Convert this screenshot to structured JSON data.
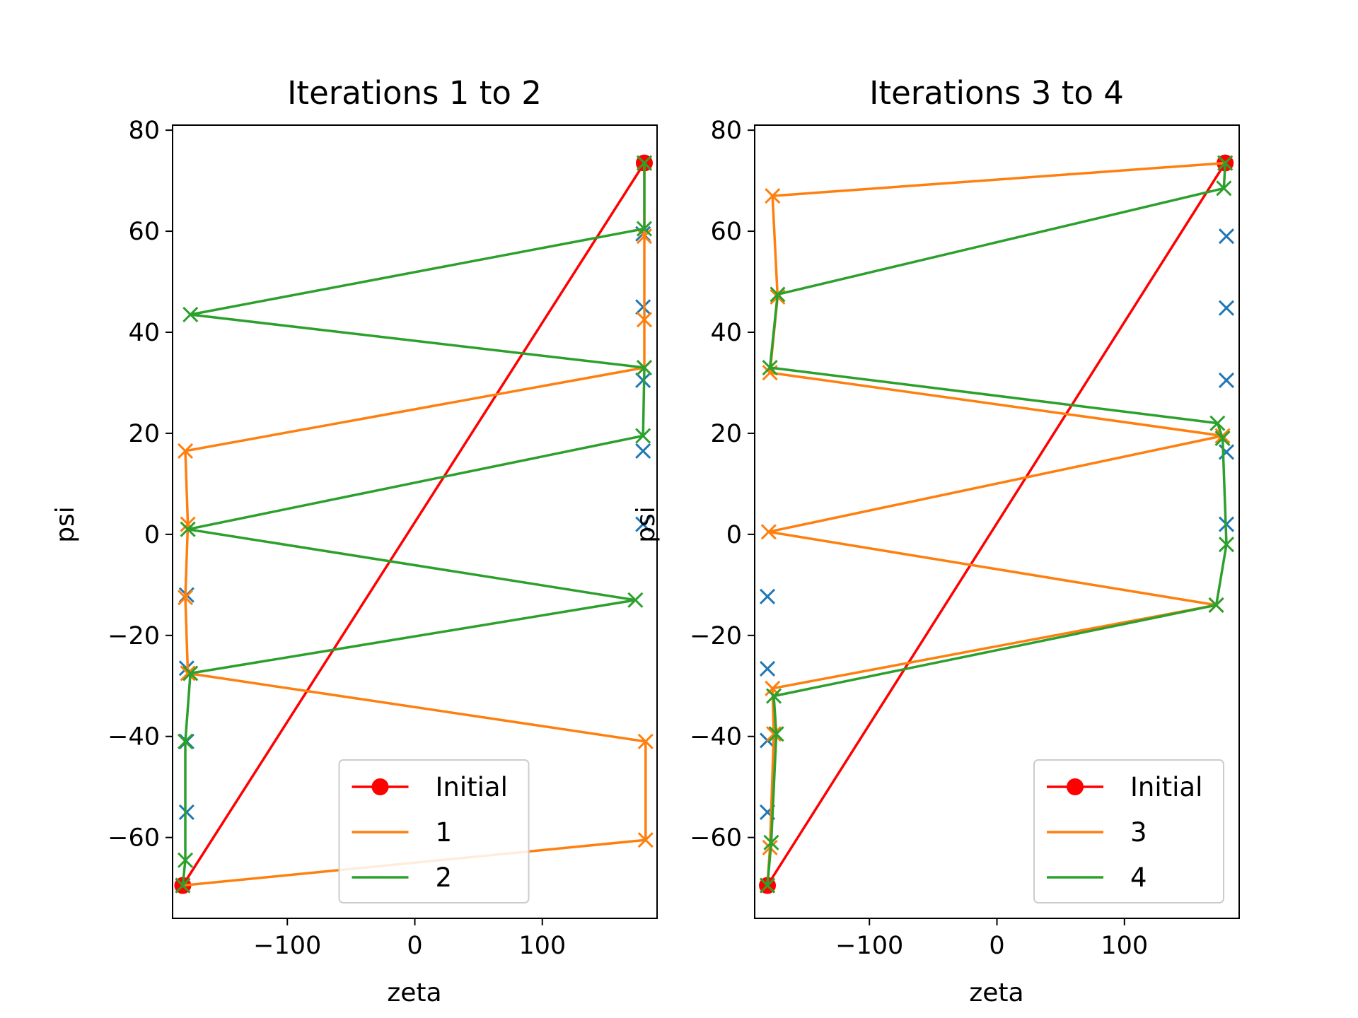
{
  "colors": {
    "initial": "#ff0000",
    "odd": "#ff7f0e",
    "even": "#2ca02c",
    "scatter": "#1f77b4"
  },
  "chart_data": [
    {
      "type": "line",
      "title": "Iterations 1 to 2",
      "xlabel": "zeta",
      "ylabel": "psi",
      "xlim": [
        -190,
        190
      ],
      "ylim": [
        -76,
        81
      ],
      "xticks": [
        -100,
        0,
        100
      ],
      "yticks": [
        -60,
        -40,
        -20,
        0,
        20,
        40,
        60,
        80
      ],
      "grid": false,
      "legend_position": "lower-center",
      "legend": [
        "Initial",
        "1",
        "2"
      ],
      "scatter_points": [
        {
          "x": 179,
          "y": 59.5
        },
        {
          "x": 179,
          "y": 45
        },
        {
          "x": 179,
          "y": 30.5
        },
        {
          "x": 179,
          "y": 16.5
        },
        {
          "x": 179,
          "y": 2
        },
        {
          "x": -179,
          "y": -12
        },
        {
          "x": -179,
          "y": -26.5
        },
        {
          "x": -179,
          "y": -41
        },
        {
          "x": -179,
          "y": -55
        }
      ],
      "series": [
        {
          "name": "Initial",
          "color_key": "initial",
          "marker": "o",
          "points": [
            {
              "x": -182,
              "y": -69.5
            },
            {
              "x": 180,
              "y": 73.5
            }
          ]
        },
        {
          "name": "1",
          "color_key": "odd",
          "marker": "x",
          "points": [
            {
              "x": -182,
              "y": -69.5
            },
            {
              "x": 181,
              "y": -60.5
            },
            {
              "x": 181,
              "y": -41
            },
            {
              "x": -178,
              "y": -27.5
            },
            {
              "x": -180,
              "y": -12.5
            },
            {
              "x": -178,
              "y": 2
            },
            {
              "x": -180,
              "y": 16.5
            },
            {
              "x": 180,
              "y": 33
            },
            {
              "x": 180,
              "y": 42.5
            },
            {
              "x": 180,
              "y": 59
            },
            {
              "x": 180,
              "y": 73.5
            }
          ]
        },
        {
          "name": "2",
          "color_key": "even",
          "marker": "x",
          "points": [
            {
              "x": 180,
              "y": 73.5
            },
            {
              "x": 180,
              "y": 60.5
            },
            {
              "x": -176,
              "y": 43.5
            },
            {
              "x": 180,
              "y": 33
            },
            {
              "x": 179,
              "y": 19.5
            },
            {
              "x": -178,
              "y": 1
            },
            {
              "x": 173,
              "y": -13
            },
            {
              "x": -176,
              "y": -27.5
            },
            {
              "x": -180,
              "y": -41
            },
            {
              "x": -180,
              "y": -64.5
            },
            {
              "x": -182,
              "y": -69.5
            }
          ]
        }
      ]
    },
    {
      "type": "line",
      "title": "Iterations 3 to 4",
      "xlabel": "zeta",
      "ylabel": "psi",
      "xlim": [
        -190,
        190
      ],
      "ylim": [
        -76,
        81
      ],
      "xticks": [
        -100,
        0,
        100
      ],
      "yticks": [
        -60,
        -40,
        -20,
        0,
        20,
        40,
        60,
        80
      ],
      "grid": false,
      "legend_position": "lower-right",
      "legend": [
        "Initial",
        "3",
        "4"
      ],
      "scatter_points": [
        {
          "x": 180,
          "y": 59
        },
        {
          "x": 180,
          "y": 44.8
        },
        {
          "x": 180,
          "y": 30.5
        },
        {
          "x": 180,
          "y": 16.3
        },
        {
          "x": 180,
          "y": 2
        },
        {
          "x": -180,
          "y": -12.3
        },
        {
          "x": -180,
          "y": -26.6
        },
        {
          "x": -180,
          "y": -40.8
        },
        {
          "x": -180,
          "y": -55
        }
      ],
      "series": [
        {
          "name": "Initial",
          "color_key": "initial",
          "marker": "o",
          "points": [
            {
              "x": -180,
              "y": -69.5
            },
            {
              "x": 179,
              "y": 73.5
            }
          ]
        },
        {
          "name": "3",
          "color_key": "odd",
          "marker": "x",
          "points": [
            {
              "x": -180,
              "y": -69.5
            },
            {
              "x": -178,
              "y": -62
            },
            {
              "x": -175,
              "y": -39.5
            },
            {
              "x": -176,
              "y": -30.5
            },
            {
              "x": 172,
              "y": -14
            },
            {
              "x": -179,
              "y": 0.5
            },
            {
              "x": 177,
              "y": 19.5
            },
            {
              "x": -178,
              "y": 32
            },
            {
              "x": -172,
              "y": 47
            },
            {
              "x": -176,
              "y": 67
            },
            {
              "x": 179,
              "y": 73.5
            }
          ]
        },
        {
          "name": "4",
          "color_key": "even",
          "marker": "x",
          "points": [
            {
              "x": 179,
              "y": 73.5
            },
            {
              "x": 178,
              "y": 68.5
            },
            {
              "x": -172,
              "y": 47.5
            },
            {
              "x": -178,
              "y": 33
            },
            {
              "x": 173,
              "y": 22
            },
            {
              "x": 177,
              "y": 19
            },
            {
              "x": 180,
              "y": -2
            },
            {
              "x": 172,
              "y": -14
            },
            {
              "x": -175,
              "y": -32
            },
            {
              "x": -173,
              "y": -39.5
            },
            {
              "x": -177,
              "y": -61
            },
            {
              "x": -180,
              "y": -69.5
            }
          ]
        }
      ]
    }
  ]
}
